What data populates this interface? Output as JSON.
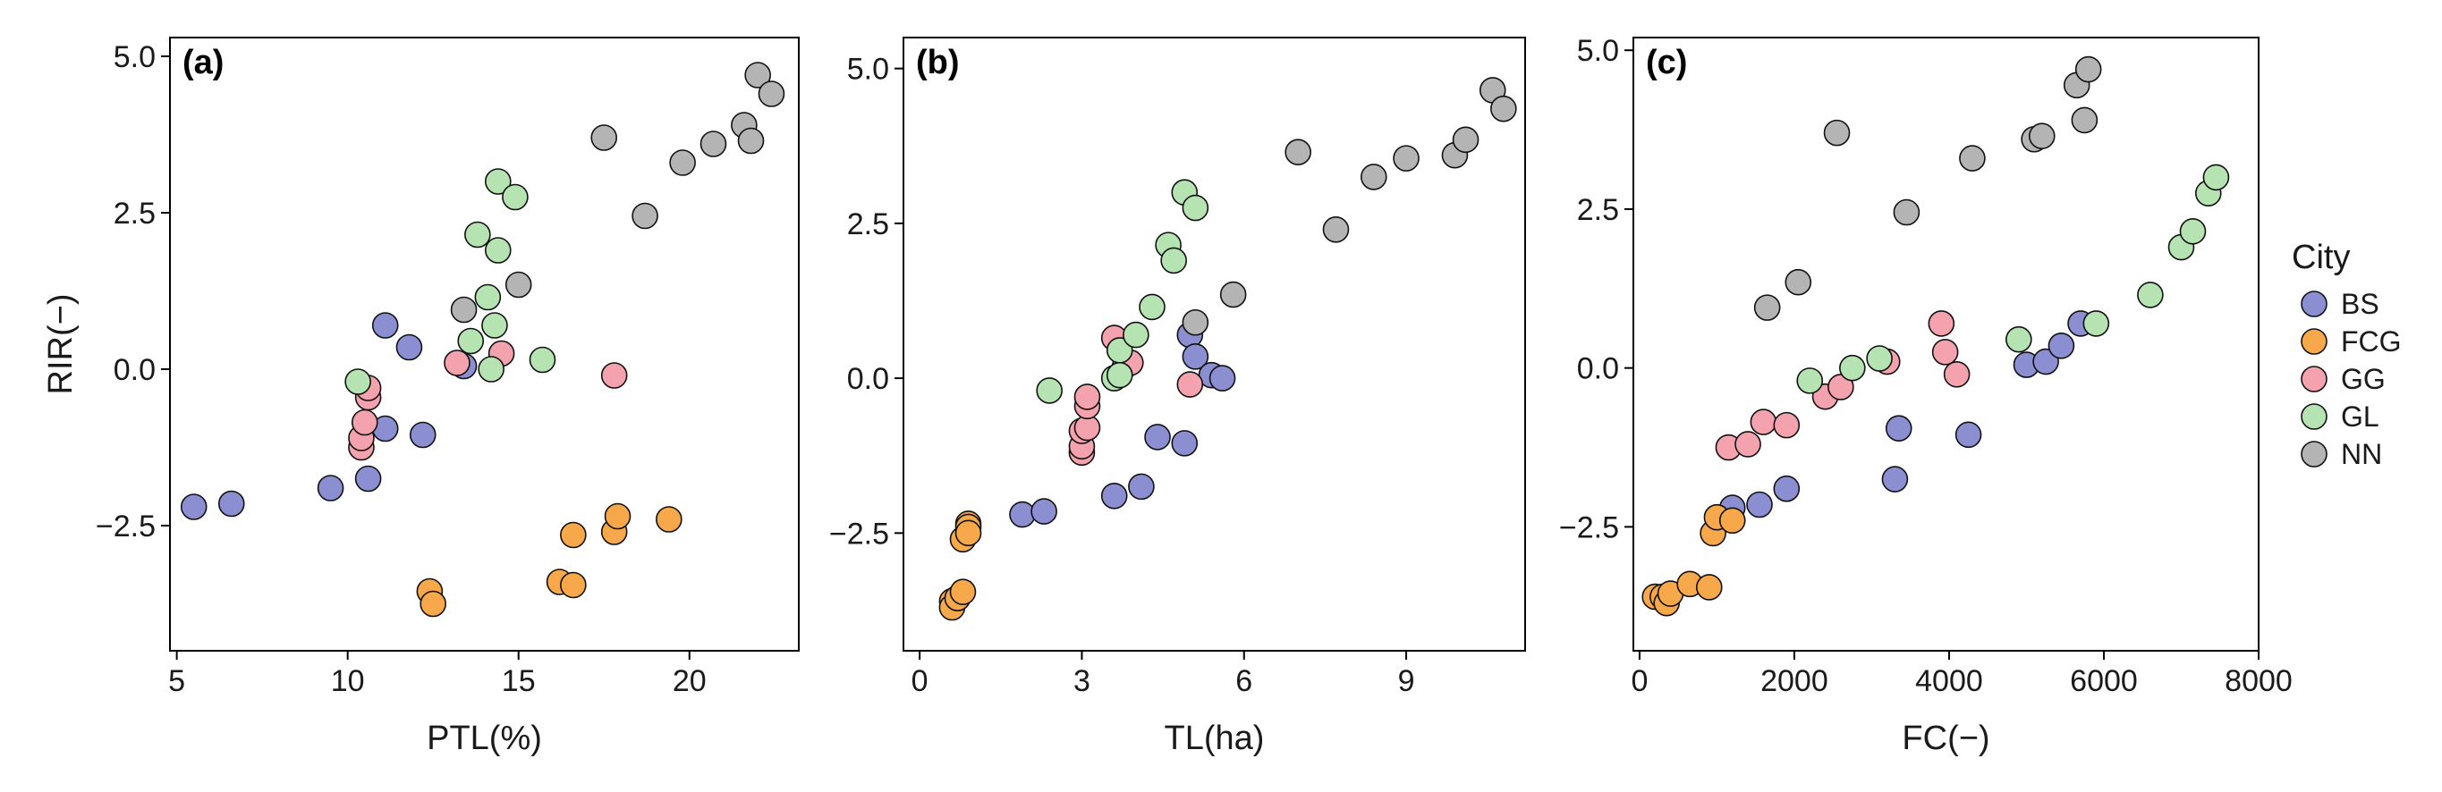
{
  "colors": {
    "BS": "#8b8fd1",
    "FCG": "#f7a84a",
    "GG": "#f4a3ae",
    "GL": "#b5e3b1",
    "NN": "#b4b4b4"
  },
  "legend": {
    "title": "City",
    "entries": [
      "BS",
      "FCG",
      "GG",
      "GL",
      "NN"
    ]
  },
  "shared_ylabel": "RIR(−)",
  "chart_data": [
    {
      "type": "scatter",
      "panel_label": "(a)",
      "xlabel": "PTL(%)",
      "ylabel": "RIR(−)",
      "xlim": [
        4.8,
        23.2
      ],
      "ylim": [
        -4.5,
        5.3
      ],
      "xticks": [
        5,
        10,
        15,
        20
      ],
      "xtick_labels": [
        "5",
        "10",
        "15",
        "20"
      ],
      "yticks": [
        -2.5,
        0.0,
        2.5,
        5.0
      ],
      "ytick_labels": [
        "−2.5",
        "0.0",
        "2.5",
        "5.0"
      ],
      "series": [
        {
          "name": "BS",
          "x": [
            5.5,
            6.6,
            9.5,
            10.6,
            11.1,
            11.1,
            11.8,
            12.2,
            13.4
          ],
          "y": [
            -2.2,
            -2.15,
            -1.9,
            -1.75,
            0.7,
            -0.95,
            0.35,
            -1.05,
            0.05
          ]
        },
        {
          "name": "FCG",
          "x": [
            12.4,
            12.5,
            16.2,
            16.6,
            16.6,
            17.8,
            17.9,
            19.4
          ],
          "y": [
            -3.55,
            -3.75,
            -3.4,
            -3.45,
            -2.65,
            -2.6,
            -2.35,
            -2.4
          ]
        },
        {
          "name": "GG",
          "x": [
            10.4,
            10.4,
            10.5,
            10.6,
            10.6,
            13.2,
            14.5,
            17.8
          ],
          "y": [
            -1.25,
            -1.1,
            -0.85,
            -0.45,
            -0.3,
            0.1,
            0.25,
            -0.1
          ]
        },
        {
          "name": "GL",
          "x": [
            10.3,
            13.6,
            13.8,
            14.1,
            14.2,
            14.3,
            14.4,
            14.4,
            14.9,
            15.7
          ],
          "y": [
            -0.2,
            0.45,
            2.15,
            1.15,
            0.0,
            0.7,
            3.0,
            1.9,
            2.75,
            0.15
          ]
        },
        {
          "name": "NN",
          "x": [
            13.4,
            15.0,
            17.5,
            18.7,
            19.8,
            20.7,
            21.6,
            21.8,
            22.0,
            22.4
          ],
          "y": [
            0.95,
            1.35,
            3.7,
            2.45,
            3.3,
            3.6,
            3.9,
            3.65,
            4.7,
            4.4
          ]
        }
      ]
    },
    {
      "type": "scatter",
      "panel_label": "(b)",
      "xlabel": "TL(ha)",
      "ylabel": "",
      "xlim": [
        -0.3,
        11.2
      ],
      "ylim": [
        -4.4,
        5.5
      ],
      "xticks": [
        0,
        3,
        6,
        9
      ],
      "xtick_labels": [
        "0",
        "3",
        "6",
        "9"
      ],
      "yticks": [
        -2.5,
        0.0,
        2.5,
        5.0
      ],
      "ytick_labels": [
        "−2.5",
        "0.0",
        "2.5",
        "5.0"
      ],
      "series": [
        {
          "name": "BS",
          "x": [
            1.9,
            2.3,
            3.6,
            4.1,
            4.4,
            4.9,
            5.0,
            5.1,
            5.4,
            5.6
          ],
          "y": [
            -2.2,
            -2.15,
            -1.9,
            -1.75,
            -0.95,
            -1.05,
            0.7,
            0.35,
            0.05,
            0.0
          ]
        },
        {
          "name": "FCG",
          "x": [
            0.6,
            0.6,
            0.7,
            0.8,
            0.8,
            0.9,
            0.9,
            0.9
          ],
          "y": [
            -3.6,
            -3.7,
            -3.55,
            -3.45,
            -2.6,
            -2.35,
            -2.4,
            -2.5
          ]
        },
        {
          "name": "GG",
          "x": [
            3.0,
            3.0,
            3.0,
            3.1,
            3.1,
            3.1,
            3.6,
            3.8,
            3.9,
            5.0
          ],
          "y": [
            -1.2,
            -1.1,
            -0.85,
            -0.8,
            -0.45,
            -0.3,
            0.65,
            0.2,
            0.25,
            -0.1
          ]
        },
        {
          "name": "GL",
          "x": [
            2.4,
            3.6,
            3.7,
            3.7,
            4.0,
            4.3,
            4.6,
            4.7,
            4.9,
            5.1
          ],
          "y": [
            -0.2,
            0.0,
            0.45,
            0.05,
            0.7,
            1.15,
            2.15,
            1.9,
            3.0,
            2.75
          ]
        },
        {
          "name": "NN",
          "x": [
            5.1,
            5.8,
            7.0,
            7.7,
            8.4,
            9.0,
            9.9,
            10.1,
            10.6,
            10.8
          ],
          "y": [
            0.9,
            1.35,
            3.65,
            2.4,
            3.25,
            3.55,
            3.6,
            3.85,
            4.65,
            4.35
          ]
        }
      ]
    },
    {
      "type": "scatter",
      "panel_label": "(c)",
      "xlabel": "FC(−)",
      "ylabel": "",
      "xlim": [
        -80,
        8000
      ],
      "ylim": [
        -4.45,
        5.2
      ],
      "xticks": [
        0,
        2000,
        4000,
        6000,
        8000
      ],
      "xtick_labels": [
        "0",
        "2000",
        "4000",
        "6000",
        "8000"
      ],
      "yticks": [
        -2.5,
        0.0,
        2.5,
        5.0
      ],
      "ytick_labels": [
        "−2.5",
        "0.0",
        "2.5",
        "5.0"
      ],
      "series": [
        {
          "name": "BS",
          "x": [
            1200,
            1550,
            1900,
            3300,
            3350,
            4250,
            5000,
            5250,
            5450,
            5700
          ],
          "y": [
            -2.2,
            -2.15,
            -1.9,
            -1.75,
            -0.95,
            -1.05,
            0.05,
            0.1,
            0.35,
            0.7
          ]
        },
        {
          "name": "FCG",
          "x": [
            200,
            300,
            350,
            400,
            650,
            900,
            950,
            1000,
            1200
          ],
          "y": [
            -3.6,
            -3.6,
            -3.7,
            -3.55,
            -3.4,
            -3.45,
            -2.6,
            -2.35,
            -2.4
          ]
        },
        {
          "name": "GG",
          "x": [
            1150,
            1400,
            1600,
            1900,
            2400,
            2600,
            3200,
            3900,
            3950,
            4100
          ],
          "y": [
            -1.25,
            -1.2,
            -0.85,
            -0.9,
            -0.45,
            -0.3,
            0.1,
            0.7,
            0.25,
            -0.1
          ]
        },
        {
          "name": "GL",
          "x": [
            2200,
            2750,
            3100,
            4900,
            5900,
            6600,
            7000,
            7150,
            7350,
            7450
          ],
          "y": [
            -0.2,
            0.0,
            0.15,
            0.45,
            0.7,
            1.15,
            1.9,
            2.15,
            2.75,
            3.0
          ]
        },
        {
          "name": "NN",
          "x": [
            1650,
            2050,
            2550,
            3450,
            4300,
            5100,
            5200,
            5650,
            5750,
            5800
          ],
          "y": [
            0.95,
            1.35,
            3.7,
            2.45,
            3.3,
            3.6,
            3.65,
            4.45,
            3.9,
            4.7
          ]
        }
      ]
    }
  ]
}
